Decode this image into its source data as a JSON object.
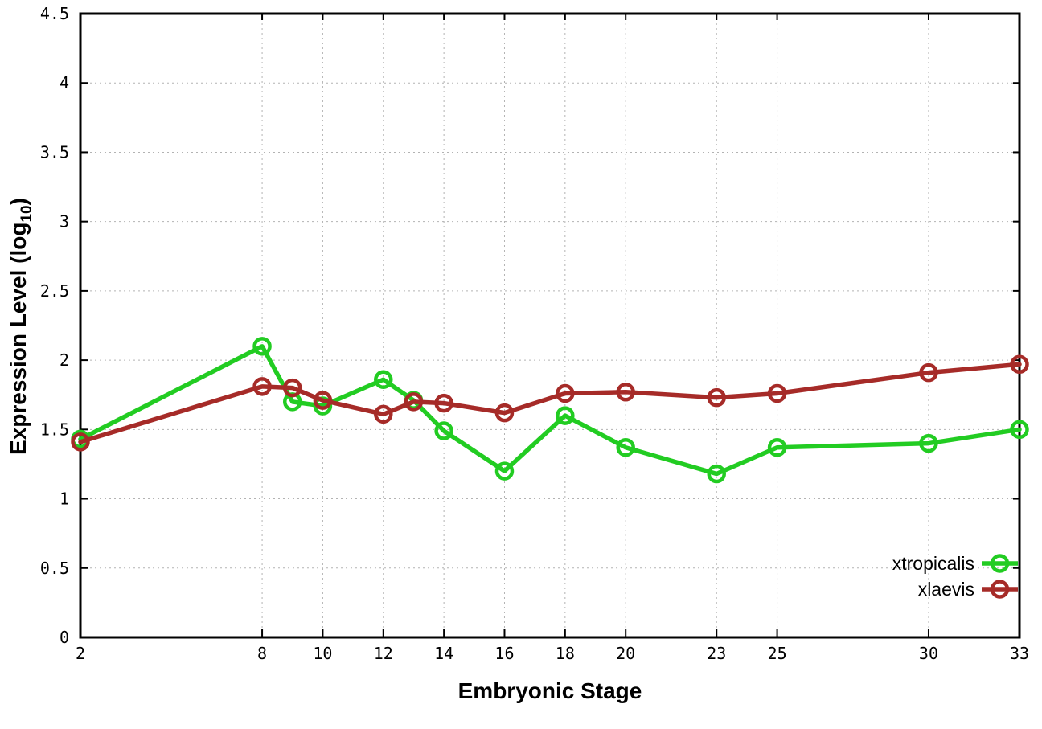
{
  "chart_data": {
    "type": "line",
    "title": "",
    "xlabel": "Embryonic Stage",
    "ylabel": "Expression Level (log10)",
    "ylabel_parts": {
      "prefix": "Expression Level (log",
      "sub": "10",
      "suffix": ")"
    },
    "xlim": [
      2,
      33
    ],
    "ylim": [
      0,
      4.5
    ],
    "x_ticks": [
      2,
      8,
      10,
      12,
      14,
      16,
      18,
      20,
      23,
      25,
      30,
      33
    ],
    "y_ticks": [
      0,
      0.5,
      1,
      1.5,
      2,
      2.5,
      3,
      3.5,
      4,
      4.5
    ],
    "grid": true,
    "legend_position": "inside-bottom-right",
    "colors": {
      "background": "#ffffff",
      "frame": "#000000",
      "grid": "#b3b3b3",
      "text": "#000000"
    },
    "x": [
      2,
      8,
      9,
      10,
      12,
      13,
      14,
      16,
      18,
      20,
      23,
      25,
      30,
      33
    ],
    "series": [
      {
        "name": "xtropicalis",
        "color": "#22cc22",
        "values": [
          1.43,
          2.1,
          1.7,
          1.67,
          1.86,
          1.71,
          1.49,
          1.2,
          1.6,
          1.37,
          1.18,
          1.37,
          1.4,
          1.5
        ]
      },
      {
        "name": "xlaevis",
        "color": "#a62b28",
        "values": [
          1.41,
          1.81,
          1.8,
          1.71,
          1.61,
          1.7,
          1.69,
          1.62,
          1.76,
          1.77,
          1.73,
          1.76,
          1.91,
          1.97
        ]
      }
    ]
  }
}
